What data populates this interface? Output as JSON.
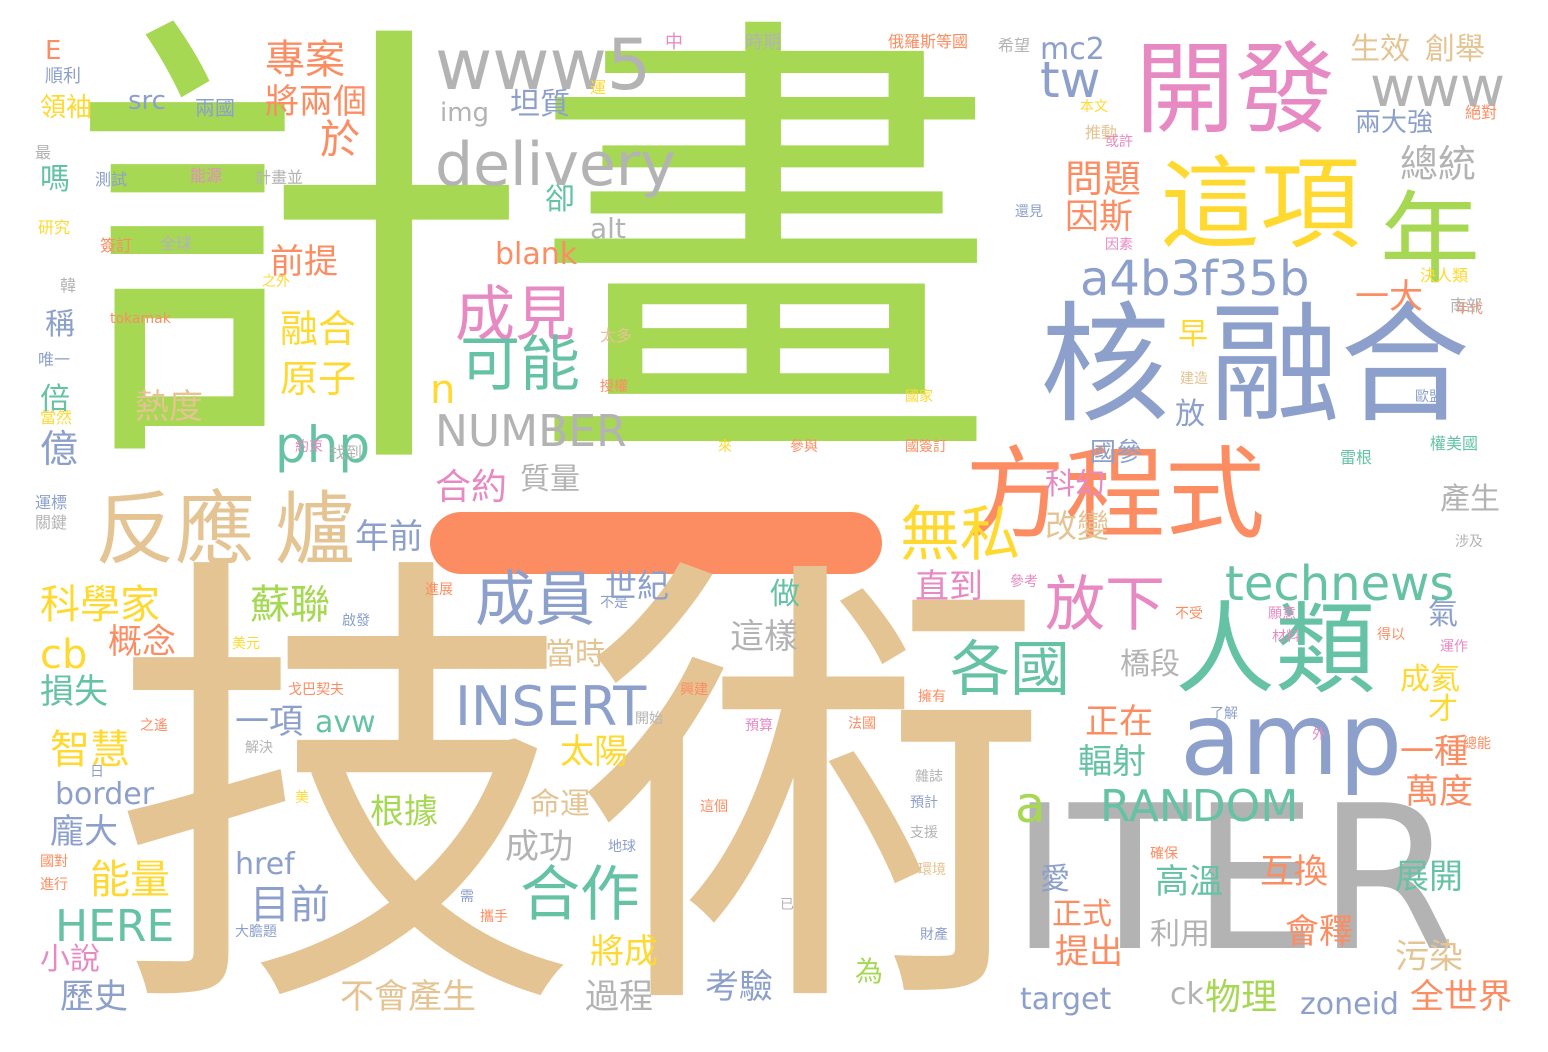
{
  "palette": {
    "green": "#a6d854",
    "tan": "#e5c494",
    "blue": "#8da0cb",
    "orange": "#fc8d62",
    "pink": "#e78ac3",
    "yellow": "#ffd92f",
    "teal": "#66c2a5",
    "gray": "#b3b3b3"
  },
  "big_dash_shape": "orange-rounded-bar",
  "words": [
    {
      "t": "計畫",
      "c": "#a6d854"
    },
    {
      "t": "技術",
      "c": "#e5c494"
    },
    {
      "t": "ITER",
      "c": "#b3b3b3"
    },
    {
      "t": "融合",
      "c": "#8da0cb"
    },
    {
      "t": "核",
      "c": "#8da0cb"
    },
    {
      "t": "這項",
      "c": "#ffd92f"
    },
    {
      "t": "年",
      "c": "#a6d854"
    },
    {
      "t": "開發",
      "c": "#e78ac3"
    },
    {
      "t": "方程式",
      "c": "#fc8d62"
    },
    {
      "t": "人類",
      "c": "#66c2a5"
    },
    {
      "t": "amp",
      "c": "#8da0cb"
    },
    {
      "t": "反應",
      "c": "#e5c494"
    },
    {
      "t": "爐",
      "c": "#e5c494"
    },
    {
      "t": "www5",
      "c": "#b3b3b3"
    },
    {
      "t": "delivery",
      "c": "#b3b3b3"
    },
    {
      "t": "www",
      "c": "#b3b3b3"
    },
    {
      "t": "a4b3f35b",
      "c": "#8da0cb"
    },
    {
      "t": "成見",
      "c": "#e78ac3"
    },
    {
      "t": "可能",
      "c": "#66c2a5"
    },
    {
      "t": "無私",
      "c": "#ffd92f"
    },
    {
      "t": "成員",
      "c": "#8da0cb"
    },
    {
      "t": "放下",
      "c": "#e78ac3"
    },
    {
      "t": "各國",
      "c": "#66c2a5"
    },
    {
      "t": "technews",
      "c": "#66c2a5"
    },
    {
      "t": "合作",
      "c": "#66c2a5"
    },
    {
      "t": "INSERT",
      "c": "#8da0cb"
    },
    {
      "t": "RANDOM",
      "c": "#66c2a5"
    },
    {
      "t": "NUMBER",
      "c": "#b3b3b3"
    },
    {
      "t": "php",
      "c": "#66c2a5"
    },
    {
      "t": "n",
      "c": "#ffd92f"
    },
    {
      "t": "tw",
      "c": "#8da0cb"
    },
    {
      "t": "a",
      "c": "#a6d854"
    },
    {
      "t": "科學家",
      "c": "#ffd92f"
    },
    {
      "t": "蘇聯",
      "c": "#a6d854"
    },
    {
      "t": "cb",
      "c": "#ffd92f"
    },
    {
      "t": "智慧",
      "c": "#ffd92f"
    },
    {
      "t": "能量",
      "c": "#ffd92f"
    },
    {
      "t": "目前",
      "c": "#8da0cb"
    },
    {
      "t": "HERE",
      "c": "#66c2a5"
    },
    {
      "t": "專案",
      "c": "#fc8d62"
    },
    {
      "t": "將兩個",
      "c": "#fc8d62"
    },
    {
      "t": "於",
      "c": "#fc8d62"
    },
    {
      "t": "問題",
      "c": "#fc8d62"
    },
    {
      "t": "因斯",
      "c": "#fc8d62"
    },
    {
      "t": "總統",
      "c": "#b3b3b3"
    },
    {
      "t": "融合",
      "c": "#ffd92f"
    },
    {
      "t": "原子",
      "c": "#ffd92f"
    },
    {
      "t": "前提",
      "c": "#fc8d62"
    },
    {
      "t": "合約",
      "c": "#e78ac3"
    },
    {
      "t": "質量",
      "c": "#b3b3b3"
    },
    {
      "t": "年前",
      "c": "#8da0cb"
    },
    {
      "t": "直到",
      "c": "#e78ac3"
    },
    {
      "t": "改變",
      "c": "#e5c494"
    },
    {
      "t": "科幻",
      "c": "#e78ac3"
    },
    {
      "t": "一大",
      "c": "#fc8d62"
    },
    {
      "t": "輻射",
      "c": "#66c2a5"
    },
    {
      "t": "正在",
      "c": "#fc8d62"
    },
    {
      "t": "一種",
      "c": "#fc8d62"
    },
    {
      "t": "萬度",
      "c": "#fc8d62"
    },
    {
      "t": "高溫",
      "c": "#66c2a5"
    },
    {
      "t": "互換",
      "c": "#fc8d62"
    },
    {
      "t": "會釋",
      "c": "#fc8d62"
    },
    {
      "t": "展開",
      "c": "#66c2a5"
    },
    {
      "t": "污染",
      "c": "#e5c494"
    },
    {
      "t": "全世界",
      "c": "#fc8d62"
    },
    {
      "t": "zoneid",
      "c": "#8da0cb"
    },
    {
      "t": "物理",
      "c": "#a6d854"
    },
    {
      "t": "ck",
      "c": "#b3b3b3"
    },
    {
      "t": "target",
      "c": "#8da0cb"
    },
    {
      "t": "考驗",
      "c": "#8da0cb"
    },
    {
      "t": "過程",
      "c": "#b3b3b3"
    },
    {
      "t": "不會產生",
      "c": "#e5c494"
    },
    {
      "t": "歷史",
      "c": "#8da0cb"
    },
    {
      "t": "小說",
      "c": "#e78ac3"
    },
    {
      "t": "將成",
      "c": "#ffd92f"
    },
    {
      "t": "成功",
      "c": "#b3b3b3"
    },
    {
      "t": "命運",
      "c": "#e5c494"
    },
    {
      "t": "根據",
      "c": "#a6d854"
    },
    {
      "t": "太陽",
      "c": "#ffd92f"
    },
    {
      "t": "當時",
      "c": "#e5c494"
    },
    {
      "t": "這樣",
      "c": "#b3b3b3"
    },
    {
      "t": "做",
      "c": "#66c2a5"
    },
    {
      "t": "世紀",
      "c": "#8da0cb"
    },
    {
      "t": "概念",
      "c": "#fc8d62"
    },
    {
      "t": "損失",
      "c": "#66c2a5"
    },
    {
      "t": "一項",
      "c": "#8da0cb"
    },
    {
      "t": "avw",
      "c": "#66c2a5"
    },
    {
      "t": "border",
      "c": "#8da0cb"
    },
    {
      "t": "龐大",
      "c": "#8da0cb"
    },
    {
      "t": "href",
      "c": "#8da0cb"
    },
    {
      "t": "熱度",
      "c": "#e5c494"
    },
    {
      "t": "億",
      "c": "#8da0cb"
    },
    {
      "t": "倍",
      "c": "#66c2a5"
    },
    {
      "t": "稱",
      "c": "#8da0cb"
    },
    {
      "t": "嗎",
      "c": "#66c2a5"
    },
    {
      "t": "src",
      "c": "#8da0cb"
    },
    {
      "t": "坦質",
      "c": "#8da0cb"
    },
    {
      "t": "img",
      "c": "#b3b3b3"
    },
    {
      "t": "mc2",
      "c": "#8da0cb"
    },
    {
      "t": "生效",
      "c": "#e5c494"
    },
    {
      "t": "創舉",
      "c": "#e5c494"
    },
    {
      "t": "兩大強",
      "c": "#8da0cb"
    },
    {
      "t": "blank",
      "c": "#fc8d62"
    },
    {
      "t": "alt",
      "c": "#b3b3b3"
    },
    {
      "t": "卻",
      "c": "#66c2a5"
    },
    {
      "t": "早",
      "c": "#ffd92f"
    },
    {
      "t": "放",
      "c": "#8da0cb"
    },
    {
      "t": "國參",
      "c": "#8da0cb"
    },
    {
      "t": "氣",
      "c": "#8da0cb"
    },
    {
      "t": "成氦",
      "c": "#ffd92f"
    },
    {
      "t": "才",
      "c": "#ffd92f"
    },
    {
      "t": "產生",
      "c": "#b3b3b3"
    },
    {
      "t": "橋段",
      "c": "#b3b3b3"
    },
    {
      "t": "愛",
      "c": "#8da0cb"
    },
    {
      "t": "正式",
      "c": "#fc8d62"
    },
    {
      "t": "提出",
      "c": "#fc8d62"
    },
    {
      "t": "利用",
      "c": "#b3b3b3"
    },
    {
      "t": "為",
      "c": "#a6d854"
    },
    {
      "t": "E",
      "c": "#fc8d62"
    },
    {
      "t": "順利",
      "c": "#8da0cb"
    },
    {
      "t": "領袖",
      "c": "#ffd92f"
    },
    {
      "t": "兩國",
      "c": "#8da0cb"
    },
    {
      "t": "最",
      "c": "#b3b3b3"
    },
    {
      "t": "測試",
      "c": "#8da0cb"
    },
    {
      "t": "能源",
      "c": "#e78ac3"
    },
    {
      "t": "計畫並",
      "c": "#b3b3b3"
    },
    {
      "t": "研究",
      "c": "#ffd92f"
    },
    {
      "t": "簽訂",
      "c": "#fc8d62"
    },
    {
      "t": "全球",
      "c": "#b3b3b3"
    },
    {
      "t": "韓",
      "c": "#b3b3b3"
    },
    {
      "t": "之外",
      "c": "#ffd92f"
    },
    {
      "t": "tokamak",
      "c": "#fc8d62"
    },
    {
      "t": "唯一",
      "c": "#8da0cb"
    },
    {
      "t": "當然",
      "c": "#ffd92f"
    },
    {
      "t": "約束",
      "c": "#e78ac3"
    },
    {
      "t": "找到",
      "c": "#b3b3b3"
    },
    {
      "t": "運標",
      "c": "#8da0cb"
    },
    {
      "t": "關鍵",
      "c": "#b3b3b3"
    },
    {
      "t": "中",
      "c": "#e78ac3"
    },
    {
      "t": "時期",
      "c": "#b3b3b3"
    },
    {
      "t": "俄羅斯等國",
      "c": "#fc8d62"
    },
    {
      "t": "希望",
      "c": "#b3b3b3"
    },
    {
      "t": "運",
      "c": "#ffd92f"
    },
    {
      "t": "本文",
      "c": "#ffd92f"
    },
    {
      "t": "推動",
      "c": "#e5c494"
    },
    {
      "t": "或許",
      "c": "#e78ac3"
    },
    {
      "t": "絕對",
      "c": "#fc8d62"
    },
    {
      "t": "還見",
      "c": "#8da0cb"
    },
    {
      "t": "因素",
      "c": "#e78ac3"
    },
    {
      "t": "決人類",
      "c": "#ffd92f"
    },
    {
      "t": "年代",
      "c": "#fc8d62"
    },
    {
      "t": "南部",
      "c": "#b3b3b3"
    },
    {
      "t": "建造",
      "c": "#e5c494"
    },
    {
      "t": "國家",
      "c": "#ffd92f"
    },
    {
      "t": "歐盟",
      "c": "#8da0cb"
    },
    {
      "t": "權美國",
      "c": "#66c2a5"
    },
    {
      "t": "雷根",
      "c": "#66c2a5"
    },
    {
      "t": "涉及",
      "c": "#b3b3b3"
    },
    {
      "t": "太多",
      "c": "#e5c494"
    },
    {
      "t": "授權",
      "c": "#fc8d62"
    },
    {
      "t": "來",
      "c": "#ffd92f"
    },
    {
      "t": "參與",
      "c": "#fc8d62"
    },
    {
      "t": "國簽訂",
      "c": "#fc8d62"
    },
    {
      "t": "參考",
      "c": "#e78ac3"
    },
    {
      "t": "不受",
      "c": "#fc8d62"
    },
    {
      "t": "願意",
      "c": "#e78ac3"
    },
    {
      "t": "進展",
      "c": "#fc8d62"
    },
    {
      "t": "不是",
      "c": "#8da0cb"
    },
    {
      "t": "啟發",
      "c": "#8da0cb"
    },
    {
      "t": "美元",
      "c": "#ffd92f"
    },
    {
      "t": "戈巴契夫",
      "c": "#fc8d62"
    },
    {
      "t": "興建",
      "c": "#fc8d62"
    },
    {
      "t": "材料",
      "c": "#e78ac3"
    },
    {
      "t": "得以",
      "c": "#fc8d62"
    },
    {
      "t": "運作",
      "c": "#e78ac3"
    },
    {
      "t": "開始",
      "c": "#b3b3b3"
    },
    {
      "t": "擁有",
      "c": "#fc8d62"
    },
    {
      "t": "了解",
      "c": "#8da0cb"
    },
    {
      "t": "之遙",
      "c": "#fc8d62"
    },
    {
      "t": "解決",
      "c": "#b3b3b3"
    },
    {
      "t": "預算",
      "c": "#e78ac3"
    },
    {
      "t": "法國",
      "c": "#fc8d62"
    },
    {
      "t": "外",
      "c": "#e78ac3"
    },
    {
      "t": "總能",
      "c": "#fc8d62"
    },
    {
      "t": "日",
      "c": "#8da0cb"
    },
    {
      "t": "雜誌",
      "c": "#b3b3b3"
    },
    {
      "t": "美",
      "c": "#ffd92f"
    },
    {
      "t": "這個",
      "c": "#fc8d62"
    },
    {
      "t": "預計",
      "c": "#8da0cb"
    },
    {
      "t": "支援",
      "c": "#b3b3b3"
    },
    {
      "t": "地球",
      "c": "#8da0cb"
    },
    {
      "t": "確保",
      "c": "#fc8d62"
    },
    {
      "t": "國對",
      "c": "#fc8d62"
    },
    {
      "t": "進行",
      "c": "#fc8d62"
    },
    {
      "t": "環境",
      "c": "#e5c494"
    },
    {
      "t": "需",
      "c": "#8da0cb"
    },
    {
      "t": "攜手",
      "c": "#fc8d62"
    },
    {
      "t": "已",
      "c": "#b3b3b3"
    },
    {
      "t": "大膽題",
      "c": "#8da0cb"
    },
    {
      "t": "財產",
      "c": "#8da0cb"
    }
  ]
}
